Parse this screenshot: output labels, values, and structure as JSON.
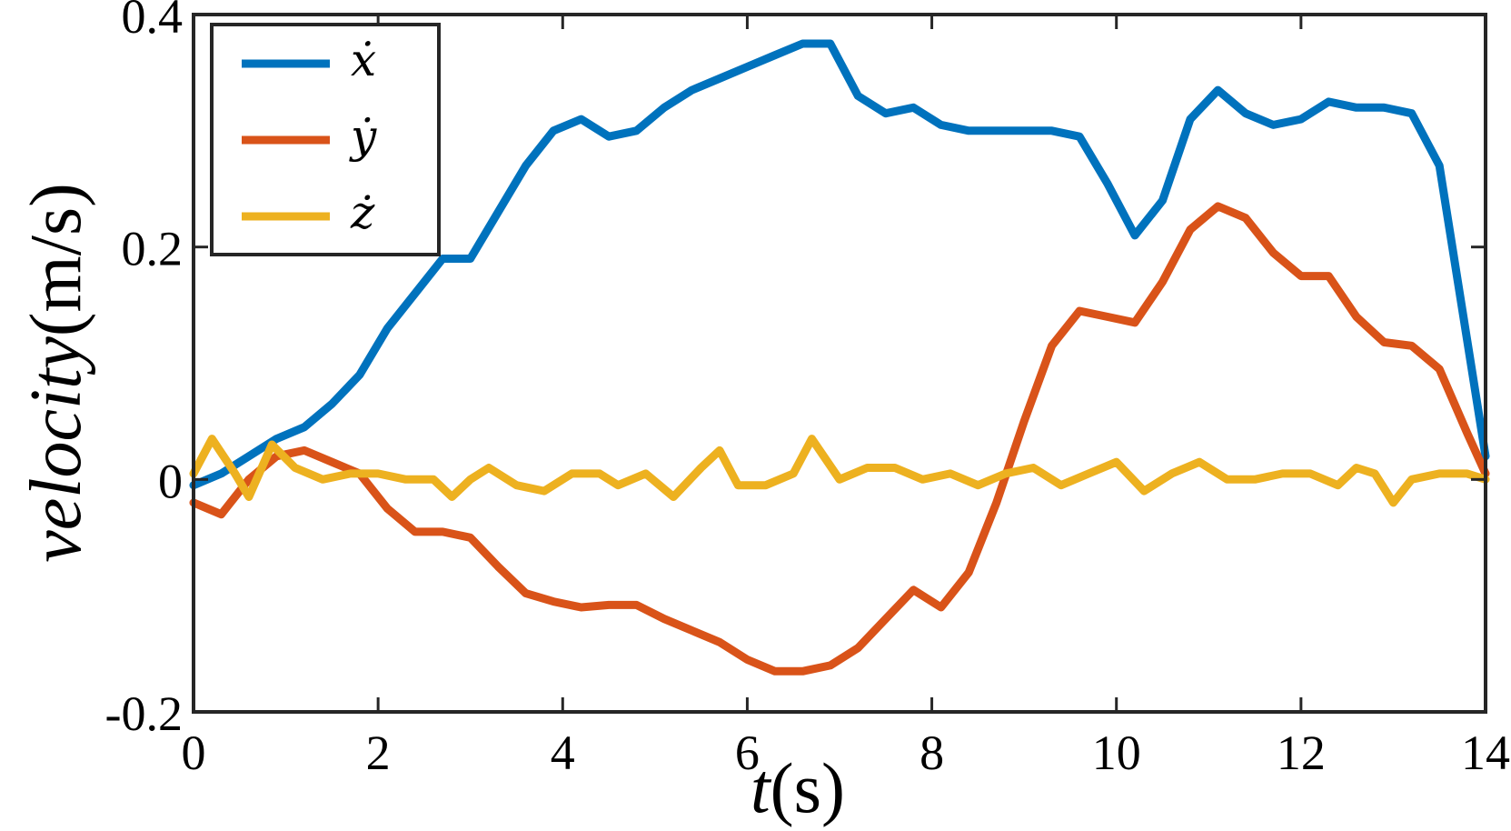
{
  "chart_data": {
    "type": "line",
    "xlabel": {
      "symbol": "t",
      "unit": "(s)"
    },
    "ylabel": {
      "symbol": "velocity",
      "unit": "(m/s)"
    },
    "xlim": [
      0,
      14
    ],
    "ylim": [
      -0.2,
      0.4
    ],
    "xticks": [
      0,
      2,
      4,
      6,
      8,
      10,
      12,
      14
    ],
    "xtick_labels": [
      "0",
      "2",
      "4",
      "6",
      "8",
      "10",
      "12",
      "14"
    ],
    "yticks": [
      -0.2,
      0,
      0.2,
      0.4
    ],
    "ytick_labels": [
      "-0.2",
      "0",
      "0.2",
      "0.4"
    ],
    "grid": false,
    "legend_position": "top-left",
    "series": [
      {
        "name": "ẋ",
        "color": "#0072BD",
        "points": [
          [
            0,
            -0.005
          ],
          [
            0.3,
            0.005
          ],
          [
            0.6,
            0.02
          ],
          [
            0.9,
            0.035
          ],
          [
            1.2,
            0.045
          ],
          [
            1.5,
            0.065
          ],
          [
            1.8,
            0.09
          ],
          [
            2.1,
            0.13
          ],
          [
            2.4,
            0.16
          ],
          [
            2.7,
            0.19
          ],
          [
            3.0,
            0.19
          ],
          [
            3.3,
            0.23
          ],
          [
            3.6,
            0.27
          ],
          [
            3.9,
            0.3
          ],
          [
            4.2,
            0.31
          ],
          [
            4.5,
            0.295
          ],
          [
            4.8,
            0.3
          ],
          [
            5.1,
            0.32
          ],
          [
            5.4,
            0.335
          ],
          [
            5.7,
            0.345
          ],
          [
            6.0,
            0.355
          ],
          [
            6.3,
            0.365
          ],
          [
            6.6,
            0.375
          ],
          [
            6.9,
            0.375
          ],
          [
            7.2,
            0.33
          ],
          [
            7.5,
            0.315
          ],
          [
            7.8,
            0.32
          ],
          [
            8.1,
            0.305
          ],
          [
            8.4,
            0.3
          ],
          [
            8.7,
            0.3
          ],
          [
            9.0,
            0.3
          ],
          [
            9.3,
            0.3
          ],
          [
            9.6,
            0.295
          ],
          [
            9.9,
            0.255
          ],
          [
            10.2,
            0.21
          ],
          [
            10.5,
            0.24
          ],
          [
            10.8,
            0.31
          ],
          [
            11.1,
            0.335
          ],
          [
            11.4,
            0.315
          ],
          [
            11.7,
            0.305
          ],
          [
            12.0,
            0.31
          ],
          [
            12.3,
            0.325
          ],
          [
            12.6,
            0.32
          ],
          [
            12.9,
            0.32
          ],
          [
            13.2,
            0.315
          ],
          [
            13.5,
            0.27
          ],
          [
            13.8,
            0.12
          ],
          [
            14.0,
            0.02
          ]
        ]
      },
      {
        "name": "ẏ",
        "color": "#D95319",
        "points": [
          [
            0,
            -0.02
          ],
          [
            0.3,
            -0.03
          ],
          [
            0.6,
            0.0
          ],
          [
            0.9,
            0.02
          ],
          [
            1.2,
            0.025
          ],
          [
            1.5,
            0.015
          ],
          [
            1.8,
            0.005
          ],
          [
            2.1,
            -0.025
          ],
          [
            2.4,
            -0.045
          ],
          [
            2.7,
            -0.045
          ],
          [
            3.0,
            -0.05
          ],
          [
            3.3,
            -0.075
          ],
          [
            3.6,
            -0.098
          ],
          [
            3.9,
            -0.105
          ],
          [
            4.2,
            -0.11
          ],
          [
            4.5,
            -0.108
          ],
          [
            4.8,
            -0.108
          ],
          [
            5.1,
            -0.12
          ],
          [
            5.4,
            -0.13
          ],
          [
            5.7,
            -0.14
          ],
          [
            6.0,
            -0.155
          ],
          [
            6.3,
            -0.165
          ],
          [
            6.6,
            -0.165
          ],
          [
            6.9,
            -0.16
          ],
          [
            7.2,
            -0.145
          ],
          [
            7.5,
            -0.12
          ],
          [
            7.8,
            -0.095
          ],
          [
            8.1,
            -0.11
          ],
          [
            8.4,
            -0.08
          ],
          [
            8.7,
            -0.02
          ],
          [
            9.0,
            0.05
          ],
          [
            9.3,
            0.115
          ],
          [
            9.6,
            0.145
          ],
          [
            9.9,
            0.14
          ],
          [
            10.2,
            0.135
          ],
          [
            10.5,
            0.17
          ],
          [
            10.8,
            0.215
          ],
          [
            11.1,
            0.235
          ],
          [
            11.4,
            0.225
          ],
          [
            11.7,
            0.195
          ],
          [
            12.0,
            0.175
          ],
          [
            12.3,
            0.175
          ],
          [
            12.6,
            0.14
          ],
          [
            12.9,
            0.118
          ],
          [
            13.2,
            0.115
          ],
          [
            13.5,
            0.095
          ],
          [
            13.8,
            0.04
          ],
          [
            14.0,
            0.005
          ]
        ]
      },
      {
        "name": "ż",
        "color": "#EDB120",
        "points": [
          [
            0,
            0.005
          ],
          [
            0.2,
            0.035
          ],
          [
            0.45,
            0.005
          ],
          [
            0.6,
            -0.015
          ],
          [
            0.85,
            0.03
          ],
          [
            1.1,
            0.01
          ],
          [
            1.4,
            0.0
          ],
          [
            1.7,
            0.005
          ],
          [
            2.0,
            0.005
          ],
          [
            2.3,
            0.0
          ],
          [
            2.6,
            0.0
          ],
          [
            2.8,
            -0.015
          ],
          [
            3.0,
            0.0
          ],
          [
            3.2,
            0.01
          ],
          [
            3.5,
            -0.005
          ],
          [
            3.8,
            -0.01
          ],
          [
            4.1,
            0.005
          ],
          [
            4.4,
            0.005
          ],
          [
            4.6,
            -0.005
          ],
          [
            4.9,
            0.005
          ],
          [
            5.2,
            -0.015
          ],
          [
            5.5,
            0.01
          ],
          [
            5.7,
            0.025
          ],
          [
            5.9,
            -0.005
          ],
          [
            6.2,
            -0.005
          ],
          [
            6.5,
            0.005
          ],
          [
            6.7,
            0.035
          ],
          [
            7.0,
            0.0
          ],
          [
            7.3,
            0.01
          ],
          [
            7.6,
            0.01
          ],
          [
            7.9,
            0.0
          ],
          [
            8.2,
            0.005
          ],
          [
            8.5,
            -0.005
          ],
          [
            8.8,
            0.005
          ],
          [
            9.1,
            0.01
          ],
          [
            9.4,
            -0.005
          ],
          [
            9.7,
            0.005
          ],
          [
            10.0,
            0.015
          ],
          [
            10.3,
            -0.01
          ],
          [
            10.6,
            0.005
          ],
          [
            10.9,
            0.015
          ],
          [
            11.2,
            0.0
          ],
          [
            11.5,
            0.0
          ],
          [
            11.8,
            0.005
          ],
          [
            12.1,
            0.005
          ],
          [
            12.4,
            -0.005
          ],
          [
            12.6,
            0.01
          ],
          [
            12.8,
            0.005
          ],
          [
            13.0,
            -0.02
          ],
          [
            13.2,
            0.0
          ],
          [
            13.5,
            0.005
          ],
          [
            13.8,
            0.005
          ],
          [
            14.0,
            0.0
          ]
        ]
      }
    ]
  }
}
